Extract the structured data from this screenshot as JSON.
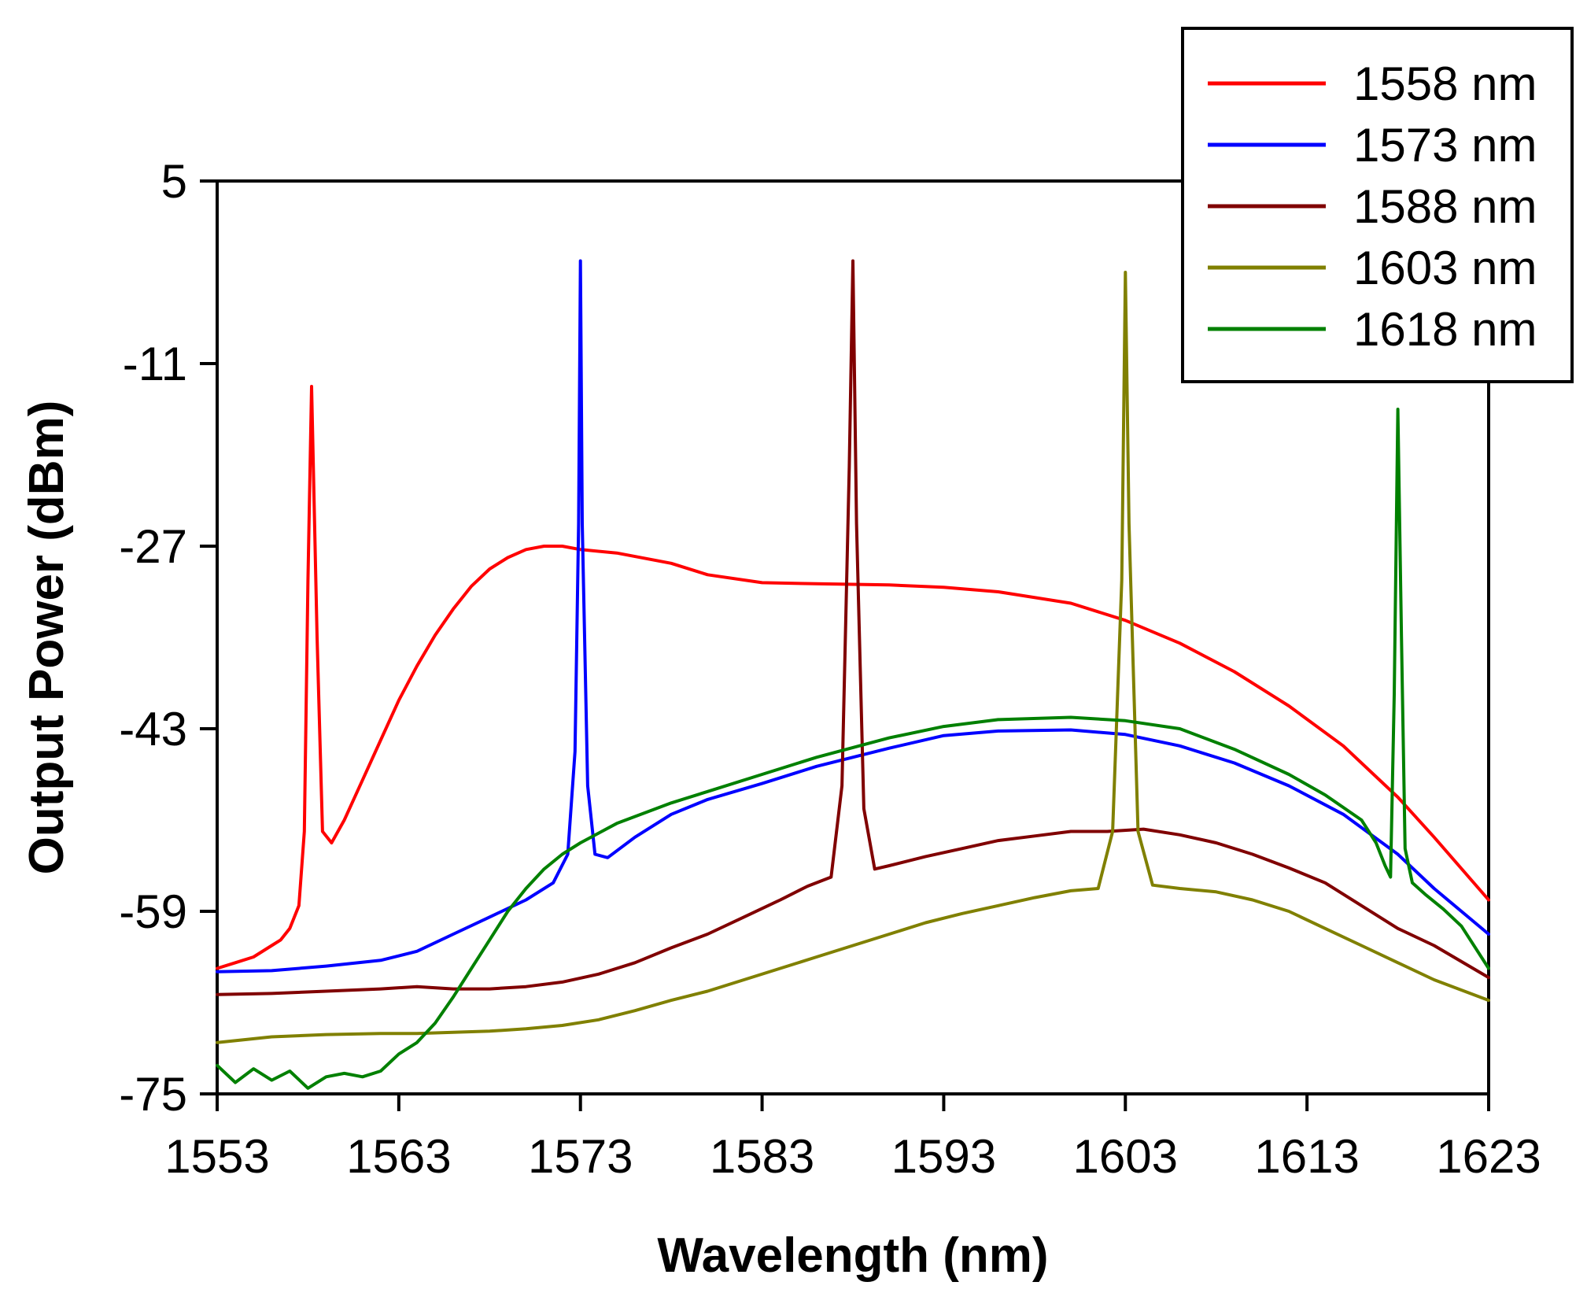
{
  "chart_data": {
    "type": "line",
    "title": "",
    "xlabel": "Wavelength (nm)",
    "ylabel": "Output Power (dBm)",
    "xlim": [
      1553,
      1623
    ],
    "ylim": [
      -75,
      5
    ],
    "xticks": [
      1553,
      1563,
      1573,
      1583,
      1593,
      1603,
      1613,
      1623
    ],
    "yticks": [
      5,
      -11,
      -27,
      -43,
      -59,
      -75
    ],
    "legend_position": "top-right",
    "series": [
      {
        "name": "1558 nm",
        "color": "#ff0000",
        "x": [
          1553,
          1554,
          1555,
          1556,
          1556.5,
          1557,
          1557.5,
          1557.8,
          1558.0,
          1558.2,
          1558.5,
          1558.8,
          1559.3,
          1560,
          1561,
          1562,
          1563,
          1564,
          1565,
          1566,
          1567,
          1568,
          1569,
          1570,
          1571,
          1572,
          1573,
          1575,
          1578,
          1580,
          1583,
          1586,
          1590,
          1593,
          1596,
          1600,
          1603,
          1606,
          1609,
          1612,
          1615,
          1618,
          1620,
          1623
        ],
        "y": [
          -64,
          -63.5,
          -63,
          -62,
          -61.5,
          -60.5,
          -58.5,
          -52,
          -30,
          -13,
          -35,
          -52,
          -53,
          -51,
          -47.5,
          -44,
          -40.5,
          -37.5,
          -34.8,
          -32.5,
          -30.5,
          -29,
          -28,
          -27.3,
          -27,
          -27,
          -27.3,
          -27.6,
          -28.5,
          -29.5,
          -30.2,
          -30.3,
          -30.4,
          -30.6,
          -31,
          -32,
          -33.5,
          -35.5,
          -38,
          -41,
          -44.5,
          -49,
          -52.5,
          -58
        ]
      },
      {
        "name": "1573 nm",
        "color": "#0000ff",
        "x": [
          1553,
          1556,
          1559,
          1562,
          1564,
          1566,
          1568,
          1570,
          1571.5,
          1572.3,
          1572.7,
          1572.9,
          1573.0,
          1573.1,
          1573.4,
          1573.8,
          1574.5,
          1576,
          1578,
          1580,
          1583,
          1586,
          1590,
          1593,
          1596,
          1600,
          1603,
          1606,
          1609,
          1612,
          1615,
          1618,
          1620,
          1623
        ],
        "y": [
          -64.3,
          -64.2,
          -63.8,
          -63.3,
          -62.5,
          -61,
          -59.5,
          -58,
          -56.5,
          -54,
          -45,
          -25,
          -2,
          -25,
          -48,
          -54,
          -54.3,
          -52.5,
          -50.5,
          -49.2,
          -47.8,
          -46.3,
          -44.7,
          -43.6,
          -43.2,
          -43.1,
          -43.5,
          -44.5,
          -46,
          -48,
          -50.5,
          -54,
          -57,
          -61
        ]
      },
      {
        "name": "1588 nm",
        "color": "#800000",
        "x": [
          1553,
          1556,
          1559,
          1562,
          1564,
          1566,
          1568,
          1570,
          1572,
          1574,
          1576,
          1578,
          1580,
          1582,
          1584,
          1585.5,
          1586.8,
          1587.4,
          1587.8,
          1588.0,
          1588.2,
          1588.6,
          1589.2,
          1590,
          1592,
          1594,
          1596,
          1598,
          1600,
          1602,
          1604,
          1606,
          1608,
          1610,
          1612,
          1614,
          1616,
          1618,
          1620,
          1623
        ],
        "y": [
          -66.3,
          -66.2,
          -66,
          -65.8,
          -65.6,
          -65.8,
          -65.8,
          -65.6,
          -65.2,
          -64.5,
          -63.5,
          -62.2,
          -61,
          -59.5,
          -58,
          -56.8,
          -56,
          -48,
          -20,
          -2,
          -25,
          -50,
          -55.3,
          -55,
          -54.2,
          -53.5,
          -52.8,
          -52.4,
          -52,
          -52,
          -51.8,
          -52.3,
          -53,
          -54,
          -55.2,
          -56.5,
          -58.5,
          -60.5,
          -62,
          -64.8
        ]
      },
      {
        "name": "1603 nm",
        "color": "#808000",
        "x": [
          1553,
          1556,
          1559,
          1562,
          1564,
          1566,
          1568,
          1570,
          1572,
          1574,
          1576,
          1578,
          1580,
          1582,
          1584,
          1586,
          1588,
          1590,
          1592,
          1594,
          1596,
          1598,
          1600,
          1601.5,
          1602.3,
          1602.8,
          1603.0,
          1603.2,
          1603.7,
          1604.5,
          1606,
          1608,
          1610,
          1612,
          1614,
          1616,
          1618,
          1620,
          1623
        ],
        "y": [
          -70.5,
          -70,
          -69.8,
          -69.7,
          -69.7,
          -69.6,
          -69.5,
          -69.3,
          -69,
          -68.5,
          -67.7,
          -66.8,
          -66,
          -65,
          -64,
          -63,
          -62,
          -61,
          -60,
          -59.2,
          -58.5,
          -57.8,
          -57.2,
          -57,
          -52,
          -30,
          -3,
          -25,
          -52,
          -56.7,
          -57,
          -57.3,
          -58,
          -59,
          -60.5,
          -62,
          -63.5,
          -65,
          -66.8
        ]
      },
      {
        "name": "1618 nm",
        "color": "#008000",
        "x": [
          1553,
          1554,
          1555,
          1556,
          1557,
          1558,
          1559,
          1560,
          1561,
          1562,
          1563,
          1564,
          1565,
          1566,
          1567,
          1568,
          1569,
          1570,
          1571,
          1572,
          1573,
          1575,
          1578,
          1580,
          1583,
          1586,
          1590,
          1593,
          1596,
          1600,
          1603,
          1606,
          1609,
          1612,
          1614,
          1616,
          1616.8,
          1617.3,
          1617.6,
          1617.8,
          1618.0,
          1618.2,
          1618.4,
          1618.8,
          1619.5,
          1620.5,
          1621.5,
          1623
        ],
        "y": [
          -72.5,
          -74,
          -72.8,
          -73.8,
          -73,
          -74.5,
          -73.5,
          -73.2,
          -73.5,
          -73,
          -71.5,
          -70.5,
          -68.8,
          -66.5,
          -64,
          -61.5,
          -59,
          -57,
          -55.3,
          -54,
          -53,
          -51.3,
          -49.5,
          -48.5,
          -47,
          -45.5,
          -43.8,
          -42.8,
          -42.2,
          -42,
          -42.3,
          -43,
          -44.8,
          -47,
          -48.8,
          -51,
          -53,
          -55,
          -56,
          -40,
          -15,
          -35,
          -53.5,
          -56.5,
          -57.5,
          -58.8,
          -60.3,
          -64
        ]
      }
    ]
  }
}
